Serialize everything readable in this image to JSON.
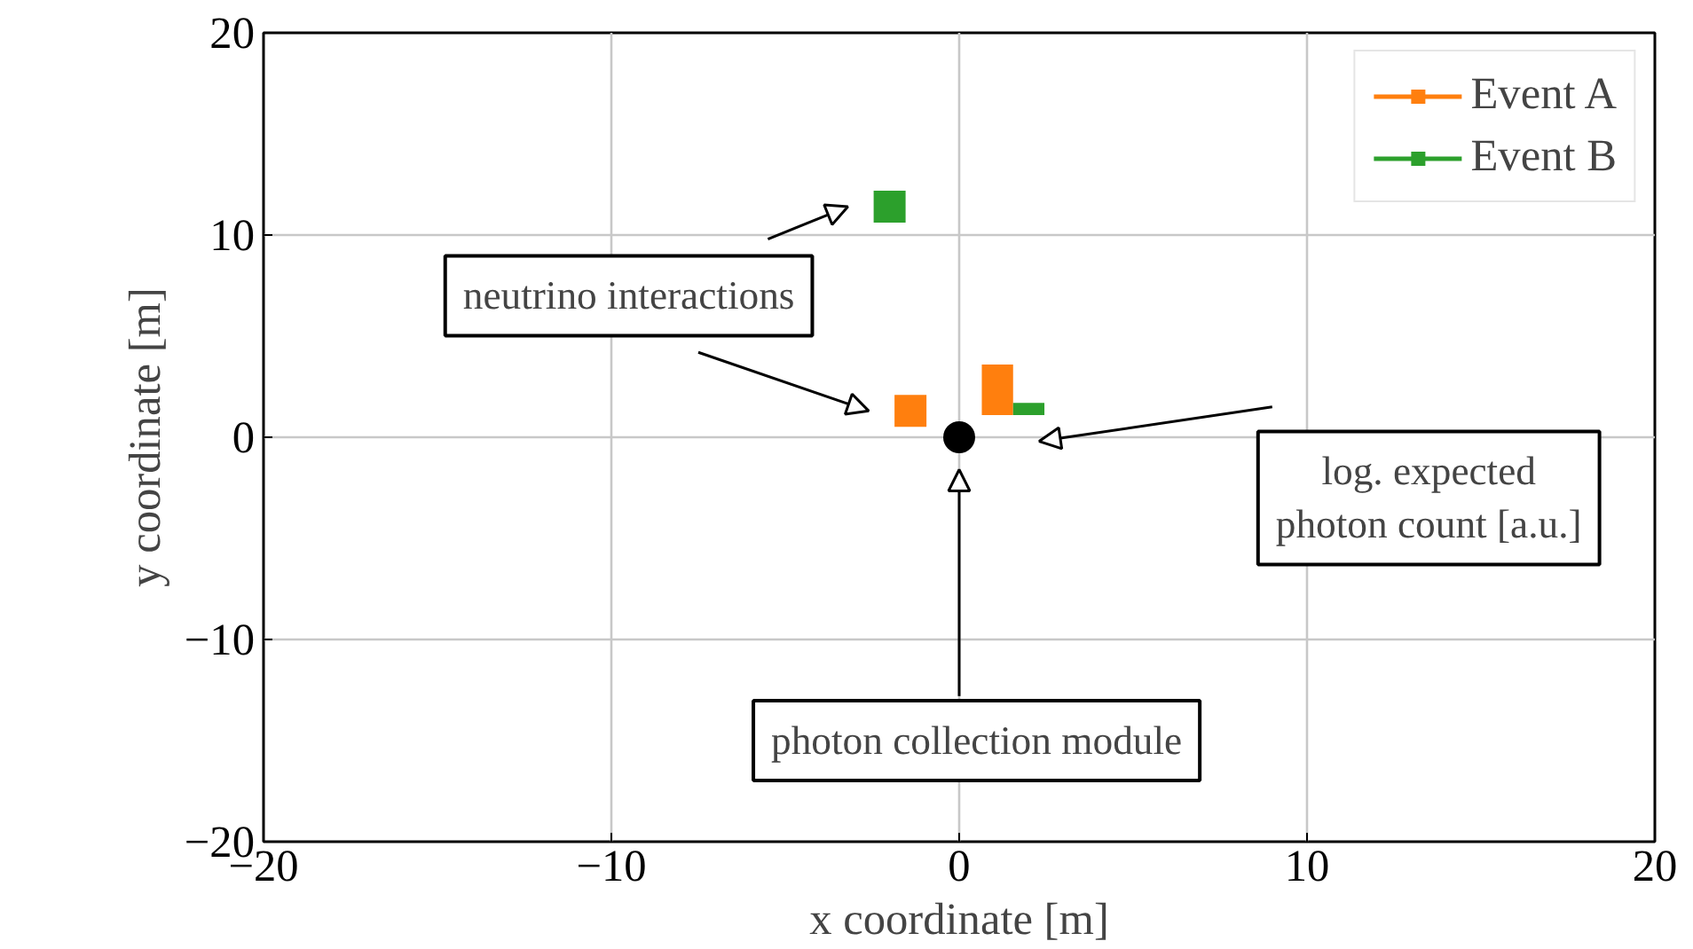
{
  "chart_data": {
    "type": "scatter",
    "xlabel": "x coordinate [m]",
    "ylabel": "y coordinate [m]",
    "xlim": [
      -20,
      20
    ],
    "ylim": [
      -20,
      20
    ],
    "xticks": [
      {
        "value": -20,
        "label": "−20"
      },
      {
        "value": -10,
        "label": "−10"
      },
      0,
      10,
      20
    ],
    "yticks": [
      {
        "value": -20,
        "label": "−20"
      },
      {
        "value": -10,
        "label": "−10"
      },
      0,
      10,
      20
    ],
    "grid": true,
    "legend": "top right",
    "series": [
      {
        "name": "Event A",
        "color": "#ff7f0e",
        "marker": "square",
        "x": [
          -1.4
        ],
        "values": [
          1.3
        ]
      },
      {
        "name": "Event B",
        "color": "#2ca02c",
        "marker": "square",
        "x": [
          -2.0
        ],
        "values": [
          11.4
        ]
      },
      {
        "color": "#000000",
        "marker": "circle",
        "x": [
          0
        ],
        "values": [
          0
        ]
      },
      {
        "color": "#ff7f0e",
        "type": "bar",
        "x": [
          1.1
        ],
        "base": [
          1.1
        ],
        "values": [
          2.5
        ]
      },
      {
        "color": "#2ca02c",
        "type": "bar",
        "x": [
          2.0
        ],
        "base": [
          1.1
        ],
        "values": [
          0.6
        ]
      }
    ],
    "annotations": [
      "neutrino interactions",
      "log. expected photon count [a.u.]",
      "photon collection module"
    ]
  }
}
